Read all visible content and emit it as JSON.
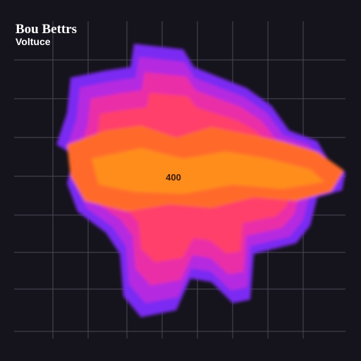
{
  "header": {
    "title": "Bou Bettrs",
    "subtitle": "Voltuce"
  },
  "labels": {
    "center": "400"
  }
}
